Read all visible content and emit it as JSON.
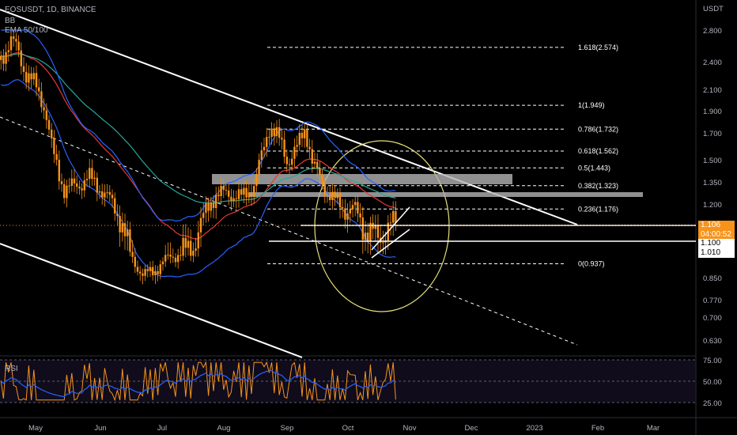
{
  "symbol": "EOSUSDT, 1D, BINANCE",
  "indicators": [
    "BB",
    "EMA 50/100"
  ],
  "currency": "USDT",
  "price_axis": [
    "2.800",
    "2.400",
    "2.100",
    "1.900",
    "1.700",
    "1.500",
    "1.350",
    "1.200",
    "1.100",
    "1.010",
    "0.850",
    "0.770",
    "0.700",
    "0.630"
  ],
  "time_axis": [
    "May",
    "Jun",
    "Jul",
    "Aug",
    "Sep",
    "Oct",
    "Nov",
    "Dec",
    "2023",
    "Feb",
    "Mar"
  ],
  "last_price": {
    "price": "1.106",
    "countdown": "04:00:52"
  },
  "level_tags": [
    "1.100",
    "1.010"
  ],
  "fib_levels": [
    "1.618(2.574)",
    "1(1.949)",
    "0.786(1.732)",
    "0.618(1.562)",
    "0.5(1.443)",
    "0.382(1.323)",
    "0.236(1.176)",
    "0(0.937)"
  ],
  "rsi": {
    "label": "RSI",
    "axis": [
      "75.00",
      "50.00",
      "25.00"
    ]
  },
  "colors": {
    "bb": "#2962ff",
    "ema50": "#e53935",
    "ema100": "#26a69a",
    "candle": "#f7931a",
    "fib": "#ffffff",
    "ellipse": "#e6e07a",
    "zone": "#b4b4b4",
    "rsi": "#f7931a",
    "rsi_ma": "#2962ff"
  }
}
